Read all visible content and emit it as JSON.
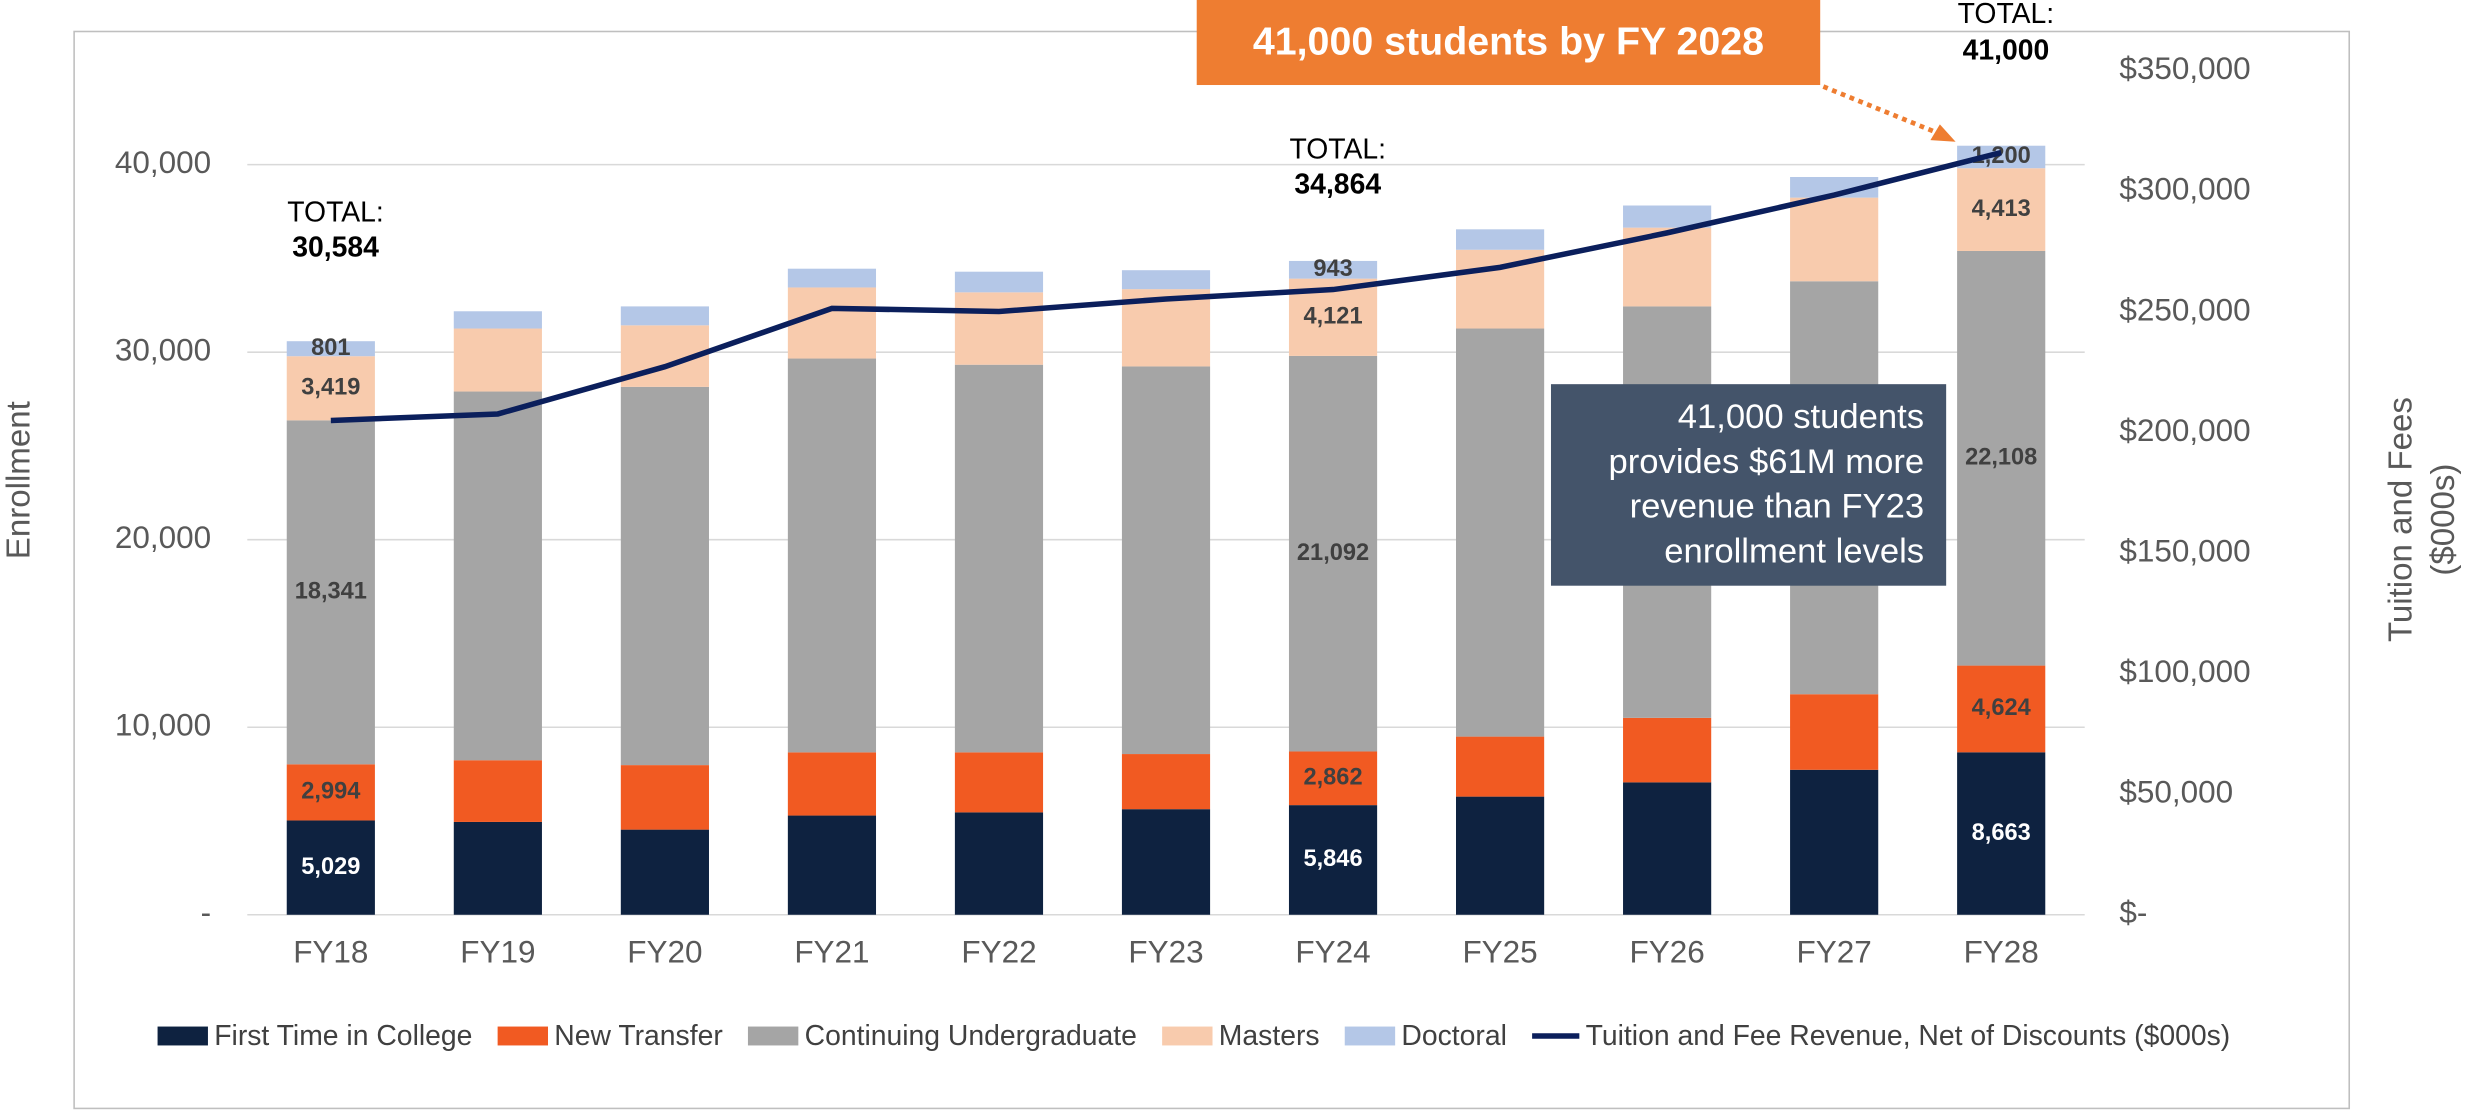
{
  "chart_data": {
    "type": "bar",
    "categories": [
      "FY18",
      "FY19",
      "FY20",
      "FY21",
      "FY22",
      "FY23",
      "FY24",
      "FY25",
      "FY26",
      "FY27",
      "FY28"
    ],
    "ylabel": "Enrollment",
    "y2label": [
      "Tuition and Fees",
      "($000s)"
    ],
    "ylim": [
      0,
      45000
    ],
    "yticks": [
      {
        "value": 0,
        "label": "-"
      },
      {
        "value": 10000,
        "label": "10,000"
      },
      {
        "value": 20000,
        "label": "20,000"
      },
      {
        "value": 30000,
        "label": "30,000"
      },
      {
        "value": 40000,
        "label": "40,000"
      }
    ],
    "y2lim": [
      0,
      350000
    ],
    "y2ticks": [
      {
        "value": 0,
        "label": "$-"
      },
      {
        "value": 50000,
        "label": "$50,000"
      },
      {
        "value": 100000,
        "label": "$100,000"
      },
      {
        "value": 150000,
        "label": "$150,000"
      },
      {
        "value": 200000,
        "label": "$200,000"
      },
      {
        "value": 250000,
        "label": "$250,000"
      },
      {
        "value": 300000,
        "label": "$300,000"
      },
      {
        "value": 350000,
        "label": "$350,000"
      }
    ],
    "grid": true,
    "legend": "bottom",
    "series": [
      {
        "name": "First Time in College",
        "color": "#0e2240",
        "label_color": "#ffffff",
        "values": [
          5029,
          4950,
          4540,
          5290,
          5460,
          5630,
          5846,
          6300,
          7060,
          7730,
          8663
        ],
        "value_labels": [
          "5,029",
          null,
          null,
          null,
          null,
          null,
          "5,846",
          null,
          null,
          null,
          "8,663"
        ]
      },
      {
        "name": "New Transfer",
        "color": "#f15a22",
        "label_color": "#404040",
        "values": [
          2994,
          3290,
          3440,
          3370,
          3200,
          2940,
          2862,
          3200,
          3440,
          4030,
          4624
        ],
        "value_labels": [
          "2,994",
          null,
          null,
          null,
          null,
          null,
          "2,862",
          null,
          null,
          null,
          "4,624"
        ]
      },
      {
        "name": "Continuing Undergraduate",
        "color": "#a5a5a5",
        "label_color": "#404040",
        "values": [
          18341,
          19660,
          20170,
          21000,
          20670,
          20670,
          21092,
          21760,
          21940,
          22020,
          22108
        ],
        "value_labels": [
          "18,341",
          null,
          null,
          null,
          null,
          null,
          "21,092",
          null,
          null,
          null,
          "22,108"
        ]
      },
      {
        "name": "Masters",
        "color": "#f8cbad",
        "label_color": "#404040",
        "values": [
          3419,
          3360,
          3280,
          3790,
          3860,
          4120,
          4121,
          4200,
          4200,
          4460,
          4413
        ],
        "value_labels": [
          "3,419",
          null,
          null,
          null,
          null,
          null,
          "4,121",
          null,
          null,
          null,
          "4,413"
        ]
      },
      {
        "name": "Doctoral",
        "color": "#b4c7e7",
        "label_color": "#404040",
        "values": [
          801,
          920,
          1010,
          1000,
          1100,
          1010,
          943,
          1090,
          1180,
          1100,
          1200
        ],
        "value_labels": [
          "801",
          null,
          null,
          null,
          null,
          null,
          "943",
          null,
          null,
          null,
          "1,200"
        ]
      },
      {
        "name": "Tuition and Fee Revenue, Net of Discounts ($000s)",
        "type": "line",
        "axis": "y2",
        "color": "#0b1f5c",
        "values": [
          205000,
          207700,
          227300,
          251500,
          250200,
          255400,
          259300,
          268500,
          282800,
          298500,
          316100
        ]
      }
    ],
    "totals": [
      {
        "category": "FY18",
        "label": "TOTAL:",
        "total": "30,584"
      },
      {
        "category": "FY24",
        "label": "TOTAL:",
        "total": "34,864"
      },
      {
        "category": "FY28",
        "label": "TOTAL:",
        "total": "41,000"
      }
    ],
    "callout": "41,000 students by FY 2028",
    "note": [
      "41,000 students",
      "provides $61M more",
      "revenue than FY23",
      "enrollment levels"
    ]
  }
}
